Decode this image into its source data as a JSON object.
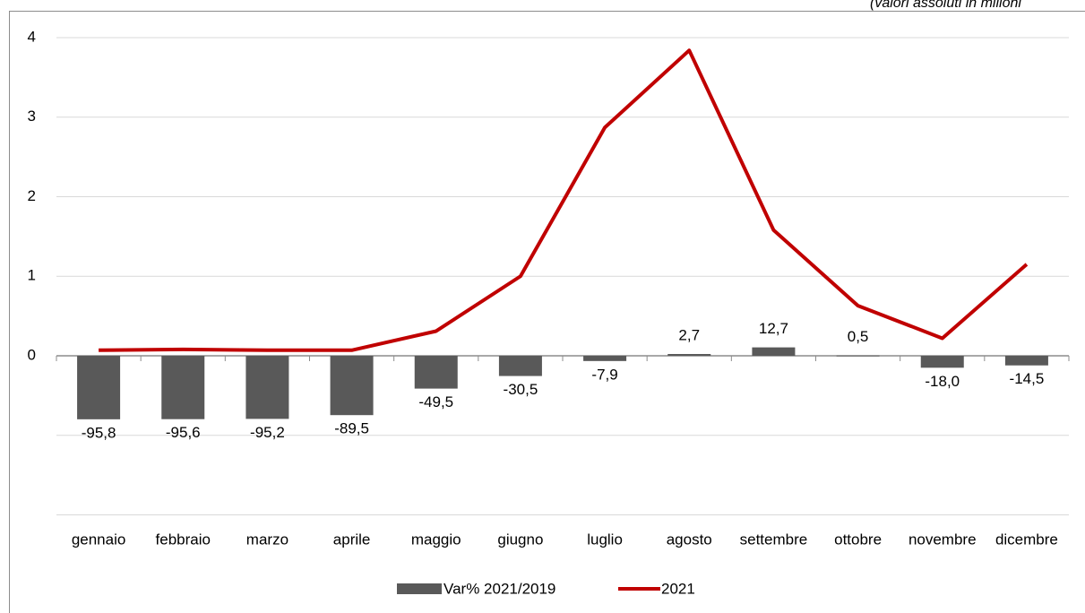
{
  "chart_data": {
    "type": "bar-line",
    "subtitle": "(valori assoluti in milioni",
    "categories": [
      "gennaio",
      "febbraio",
      "marzo",
      "aprile",
      "maggio",
      "giugno",
      "luglio",
      "agosto",
      "settembre",
      "ottobre",
      "novembre",
      "dicembre"
    ],
    "series": [
      {
        "name": "Var% 2021/2019",
        "type": "bar",
        "axis": "y2",
        "color": "#595959",
        "values": [
          -95.8,
          -95.6,
          -95.2,
          -89.5,
          -49.5,
          -30.5,
          -7.9,
          2.7,
          12.7,
          0.5,
          -18.0,
          -14.5
        ],
        "value_labels": [
          "-95,8",
          "-95,6",
          "-95,2",
          "-89,5",
          "-49,5",
          "-30,5",
          "-7,9",
          "2,7",
          "12,7",
          "0,5",
          "-18,0",
          "-14,5"
        ]
      },
      {
        "name": "2021",
        "type": "line",
        "color": "#c00000",
        "values": [
          0.07,
          0.08,
          0.07,
          0.07,
          0.31,
          1.0,
          2.87,
          3.84,
          1.58,
          0.63,
          0.22,
          1.15
        ]
      }
    ],
    "ylim": [
      -2,
      4
    ],
    "yticks": [
      0,
      1,
      2,
      3,
      4
    ],
    "y2lim": [
      -240,
      480
    ],
    "grid": true,
    "legend": "bottom"
  }
}
